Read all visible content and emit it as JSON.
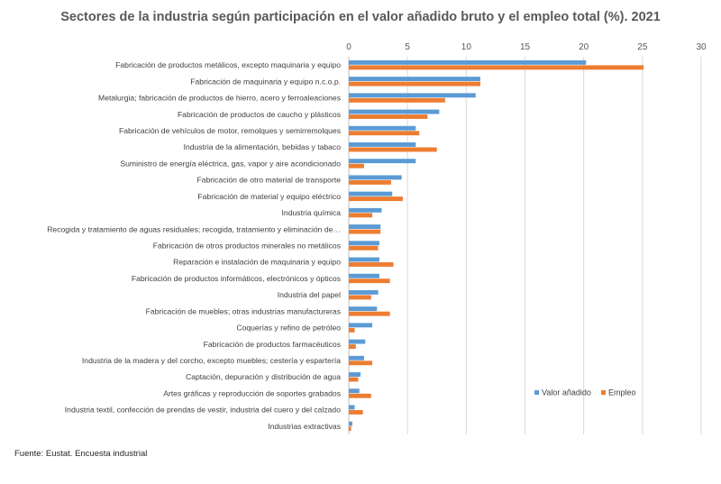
{
  "chart_data": {
    "type": "bar",
    "orientation": "horizontal",
    "title": "Sectores de la industria según participación en el valor añadido bruto y el empleo total (%). 2021",
    "xlabel": "",
    "ylabel": "",
    "xlim": [
      0,
      30
    ],
    "xticks": [
      "0",
      "5",
      "10",
      "15",
      "20",
      "25",
      "30"
    ],
    "grid": true,
    "legend_position": "bottom-right",
    "categories": [
      "Fabricación de productos metálicos, excepto maquinaria y equipo",
      "Fabricación de maquinaria y equipo n.c.o.p.",
      "Metalurgia; fabricación de productos de hierro, acero y ferroaleaciones",
      "Fabricación de productos de caucho y plásticos",
      "Fabricación de vehículos de motor, remolques y semirremolques",
      "Industria de la alimentación, bebidas y tabaco",
      "Suministro de energía eléctrica, gas, vapor y aire acondicionado",
      "Fabricación de otro material de transporte",
      "Fabricación de material y equipo eléctrico",
      "Industria química",
      "Recogida y tratamiento de aguas residuales; recogida, tratamiento y eliminación de…",
      "Fabricación de otros productos minerales no metálicos",
      "Reparación e instalación de maquinaria y equipo",
      "Fabricación de productos informáticos, electrónicos y ópticos",
      "Industria del papel",
      "Fabricación de muebles; otras industrias manufactureras",
      "Coquerías y refino de petróleo",
      "Fabricación de productos farmacéuticos",
      "Industria de la madera y del corcho, excepto muebles; cestería y espartería",
      "Captación, depuración y distribución de agua",
      "Artes gráficas y reproducción de soportes grabados",
      "Industria textil, confección de prendas de vestir, industria del cuero y del calzado",
      "Industrias extractivas"
    ],
    "series": [
      {
        "name": "Valor añadido",
        "color": "#5B9BD5",
        "values": [
          20.2,
          11.2,
          10.8,
          7.7,
          5.7,
          5.7,
          5.7,
          4.5,
          3.7,
          2.8,
          2.7,
          2.6,
          2.6,
          2.6,
          2.5,
          2.4,
          2.0,
          1.4,
          1.3,
          1.0,
          0.9,
          0.5,
          0.3
        ]
      },
      {
        "name": "Empleo",
        "color": "#ED7D31",
        "values": [
          25.1,
          11.2,
          8.2,
          6.7,
          6.0,
          7.5,
          1.3,
          3.6,
          4.6,
          2.0,
          2.7,
          2.5,
          3.8,
          3.5,
          1.9,
          3.5,
          0.5,
          0.6,
          2.0,
          0.8,
          1.9,
          1.2,
          0.2
        ]
      }
    ]
  },
  "footer": {
    "source": "Fuente: Eustat. Encuesta industrial"
  }
}
